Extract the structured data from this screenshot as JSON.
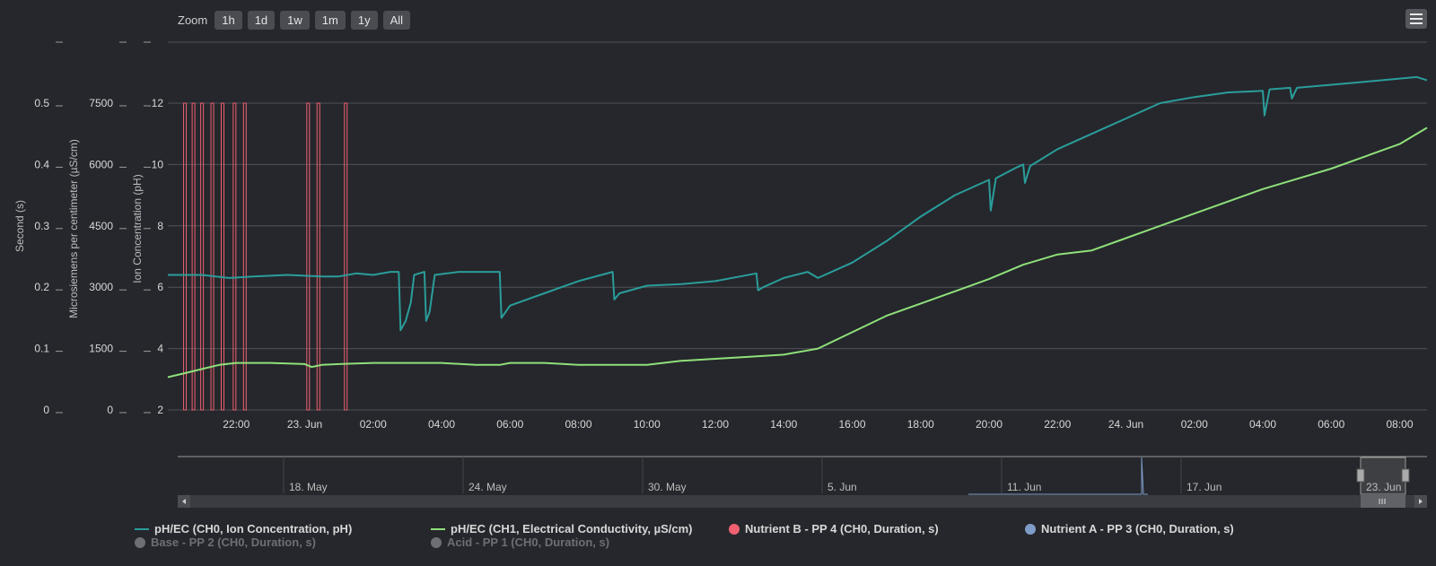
{
  "toolbar": {
    "zoom_label": "Zoom",
    "buttons": [
      "1h",
      "1d",
      "1w",
      "1m",
      "1y",
      "All"
    ]
  },
  "menu_icon": "hamburger-menu-icon",
  "colors": {
    "background": "#25272c",
    "ph": "#2a9d9a",
    "ec": "#8fe07a",
    "nutrient_b": "#f06070",
    "nutrient_a": "#7f9cc9",
    "grid": "#505257"
  },
  "chart_data": {
    "type": "line",
    "axes": [
      {
        "id": "seconds",
        "title": "Second (s)",
        "ticks": [
          "0",
          "0.1",
          "0.2",
          "0.3",
          "0.4",
          "0.5"
        ],
        "range": [
          0,
          0.5
        ]
      },
      {
        "id": "ec",
        "title": "Microsiemens per centimeter (µS/cm)",
        "ticks": [
          "0",
          "1500",
          "3000",
          "4500",
          "6000",
          "7500"
        ],
        "range": [
          0,
          7500
        ]
      },
      {
        "id": "ph",
        "title": "Ion Concentration (pH)",
        "ticks": [
          "2",
          "4",
          "6",
          "8",
          "10",
          "12"
        ],
        "range": [
          2,
          12
        ]
      }
    ],
    "x_ticks": [
      "22:00",
      "23. Jun",
      "02:00",
      "04:00",
      "06:00",
      "08:00",
      "10:00",
      "12:00",
      "14:00",
      "16:00",
      "18:00",
      "20:00",
      "22:00",
      "24. Jun",
      "02:00",
      "04:00",
      "06:00",
      "08:00"
    ],
    "x_range_hours": [
      -2.0,
      34.8
    ],
    "series": [
      {
        "name": "pH/EC (CH0, Ion Concentration, pH)",
        "axis": "ph",
        "points": [
          [
            -2.0,
            6.4
          ],
          [
            -1.0,
            6.4
          ],
          [
            -0.2,
            6.3
          ],
          [
            0.5,
            6.35
          ],
          [
            1.5,
            6.4
          ],
          [
            2.5,
            6.35
          ],
          [
            3.0,
            6.35
          ],
          [
            3.5,
            6.45
          ],
          [
            4.0,
            6.4
          ],
          [
            4.5,
            6.5
          ],
          [
            4.75,
            6.5
          ],
          [
            4.8,
            4.6
          ],
          [
            4.95,
            4.9
          ],
          [
            5.1,
            5.5
          ],
          [
            5.2,
            6.4
          ],
          [
            5.5,
            6.5
          ],
          [
            5.55,
            4.9
          ],
          [
            5.65,
            5.2
          ],
          [
            5.8,
            6.4
          ],
          [
            6.5,
            6.5
          ],
          [
            7.0,
            6.5
          ],
          [
            7.7,
            6.5
          ],
          [
            7.75,
            5.0
          ],
          [
            8.0,
            5.4
          ],
          [
            9.0,
            5.8
          ],
          [
            10.0,
            6.2
          ],
          [
            11.0,
            6.5
          ],
          [
            11.05,
            5.6
          ],
          [
            11.2,
            5.8
          ],
          [
            12.0,
            6.05
          ],
          [
            13.0,
            6.1
          ],
          [
            14.0,
            6.2
          ],
          [
            15.2,
            6.45
          ],
          [
            15.25,
            5.9
          ],
          [
            15.4,
            6.0
          ],
          [
            16.0,
            6.3
          ],
          [
            16.7,
            6.5
          ],
          [
            17.0,
            6.3
          ],
          [
            18.0,
            6.8
          ],
          [
            19.0,
            7.5
          ],
          [
            20.0,
            8.3
          ],
          [
            21.0,
            9.0
          ],
          [
            22.0,
            9.5
          ],
          [
            22.05,
            8.5
          ],
          [
            22.2,
            9.55
          ],
          [
            22.8,
            9.9
          ],
          [
            23.0,
            10.0
          ],
          [
            23.05,
            9.4
          ],
          [
            23.2,
            9.95
          ],
          [
            24.0,
            10.5
          ],
          [
            25.0,
            11.0
          ],
          [
            26.0,
            11.5
          ],
          [
            27.0,
            12.0
          ],
          [
            28.0,
            12.2
          ],
          [
            29.0,
            12.35
          ],
          [
            30.0,
            12.4
          ],
          [
            30.05,
            11.6
          ],
          [
            30.2,
            12.45
          ],
          [
            30.8,
            12.5
          ],
          [
            30.85,
            12.15
          ],
          [
            31.0,
            12.5
          ],
          [
            32.0,
            12.6
          ],
          [
            33.0,
            12.7
          ],
          [
            34.0,
            12.8
          ],
          [
            34.5,
            12.85
          ],
          [
            34.8,
            12.75
          ]
        ]
      },
      {
        "name": "pH/EC (CH1, Electrical Conductivity, µS/cm)",
        "axis": "ec",
        "points": [
          [
            -2.0,
            800
          ],
          [
            -1.5,
            900
          ],
          [
            -1.0,
            1000
          ],
          [
            -0.5,
            1100
          ],
          [
            0.0,
            1150
          ],
          [
            1.0,
            1150
          ],
          [
            2.0,
            1120
          ],
          [
            2.2,
            1050
          ],
          [
            2.5,
            1100
          ],
          [
            3.0,
            1120
          ],
          [
            4.0,
            1150
          ],
          [
            5.0,
            1150
          ],
          [
            6.0,
            1150
          ],
          [
            7.0,
            1100
          ],
          [
            7.7,
            1100
          ],
          [
            8.0,
            1150
          ],
          [
            9.0,
            1150
          ],
          [
            10.0,
            1100
          ],
          [
            11.0,
            1100
          ],
          [
            12.0,
            1100
          ],
          [
            13.0,
            1200
          ],
          [
            14.0,
            1250
          ],
          [
            15.0,
            1300
          ],
          [
            16.0,
            1350
          ],
          [
            17.0,
            1500
          ],
          [
            18.0,
            1900
          ],
          [
            19.0,
            2300
          ],
          [
            20.0,
            2600
          ],
          [
            21.0,
            2900
          ],
          [
            22.0,
            3200
          ],
          [
            23.0,
            3550
          ],
          [
            24.0,
            3800
          ],
          [
            25.0,
            3900
          ],
          [
            26.0,
            4200
          ],
          [
            27.0,
            4500
          ],
          [
            28.0,
            4800
          ],
          [
            29.0,
            5100
          ],
          [
            30.0,
            5400
          ],
          [
            31.0,
            5650
          ],
          [
            32.0,
            5900
          ],
          [
            33.0,
            6200
          ],
          [
            34.0,
            6500
          ],
          [
            34.8,
            6900
          ]
        ]
      }
    ],
    "events": {
      "name": "Nutrient B - PP 4 (CH0, Duration, s)",
      "x": [
        -1.5,
        -1.25,
        -1.0,
        -0.7,
        -0.4,
        -0.05,
        0.25,
        2.1,
        2.4,
        3.2
      ]
    },
    "navigator": {
      "x_ticks": [
        "18. May",
        "24. May",
        "30. May",
        "5. Jun",
        "11. Jun",
        "17. Jun",
        "23. Jun"
      ]
    },
    "legend": [
      {
        "name": "pH/EC (CH0, Ion Concentration, pH)",
        "symbol": "line",
        "color": "#2a9d9a",
        "visible": true
      },
      {
        "name": "pH/EC (CH1, Electrical Conductivity, µS/cm)",
        "symbol": "line",
        "color": "#8fe07a",
        "visible": true
      },
      {
        "name": "Nutrient B - PP 4 (CH0, Duration, s)",
        "symbol": "dot",
        "color": "#f06070",
        "visible": true
      },
      {
        "name": "Nutrient A - PP 3 (CH0, Duration, s)",
        "symbol": "dot",
        "color": "#7f9cc9",
        "visible": true
      },
      {
        "name": "Base - PP 2 (CH0, Duration, s)",
        "symbol": "dot",
        "color": "#6d6f74",
        "visible": false
      },
      {
        "name": "Acid - PP 1 (CH0, Duration, s)",
        "symbol": "dot",
        "color": "#6d6f74",
        "visible": false
      }
    ]
  }
}
